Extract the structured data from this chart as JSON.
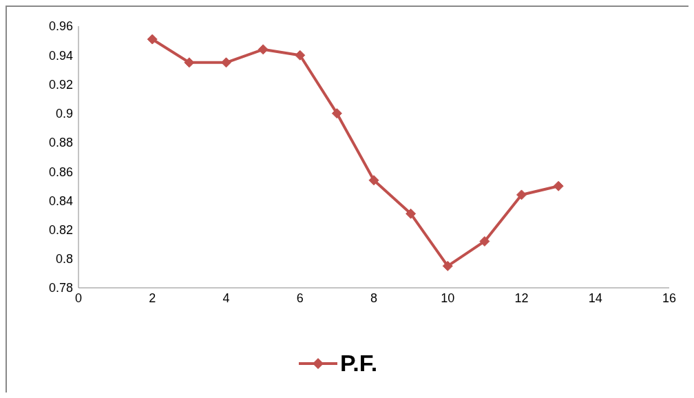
{
  "chart_data": {
    "type": "line",
    "x": [
      2,
      3,
      4,
      5,
      6,
      7,
      8,
      9,
      10,
      11,
      12,
      13
    ],
    "series": [
      {
        "name": "P.F.",
        "color": "#c0504d",
        "values": [
          0.951,
          0.935,
          0.935,
          0.944,
          0.94,
          0.9,
          0.854,
          0.831,
          0.795,
          0.812,
          0.844,
          0.85
        ]
      }
    ],
    "xlim": [
      0,
      16
    ],
    "xticks": [
      0,
      2,
      4,
      6,
      8,
      10,
      12,
      14,
      16
    ],
    "ylim": [
      0.78,
      0.96
    ],
    "yticks": [
      0.78,
      0.8,
      0.82,
      0.84,
      0.86,
      0.88,
      0.9,
      0.92,
      0.94,
      0.96
    ],
    "grid": false,
    "legend": "bottom",
    "marker": "diamond",
    "line_style": "solid"
  }
}
